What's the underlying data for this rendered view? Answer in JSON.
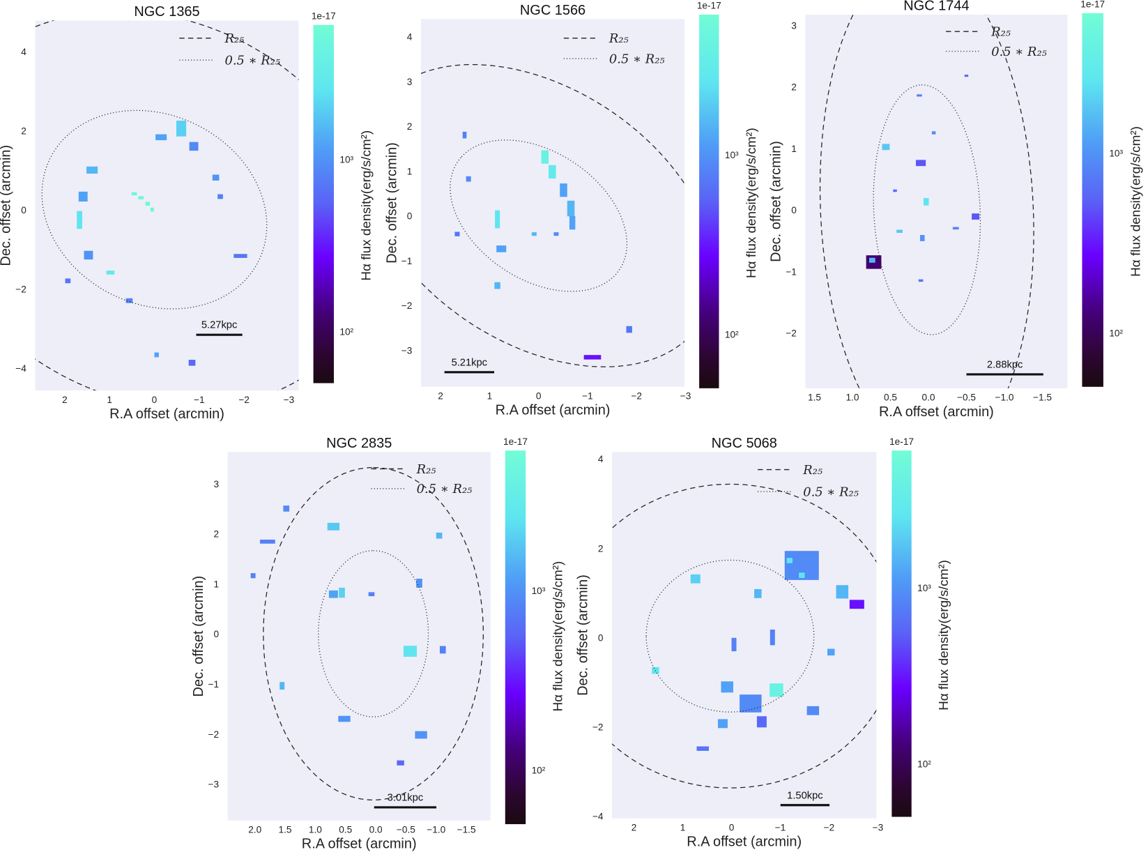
{
  "chart_data": [
    {
      "type": "heatmap",
      "title": "NGC 1365",
      "xlabel": "R.A offset (arcmin)",
      "ylabel": "Dec. offset (arcmin)",
      "xlim": [
        2.66,
        -3.22
      ],
      "ylim": [
        -4.57,
        4.78
      ],
      "xticks": [
        2,
        1,
        0,
        -1,
        -2,
        -3
      ],
      "xtick_labels": [
        "2",
        "1",
        "0",
        "−1",
        "−2",
        "−3"
      ],
      "yticks": [
        4,
        2,
        0,
        -2,
        -4
      ],
      "ytick_labels": [
        "4",
        "2",
        "0",
        "−2",
        "−4"
      ],
      "colorbar": {
        "label": "Hα flux density(erg/s/cm²)",
        "exponent": "1e-17",
        "scale": "log",
        "range": [
          50,
          6000
        ],
        "ticks": [
          1000,
          100
        ],
        "tick_labels": [
          "10³",
          "10²"
        ]
      },
      "legend": {
        "position": "top-right",
        "entries": [
          "R₂₅",
          "0.5 ∗ R₂₅"
        ]
      },
      "scale_bar": "5.27kpc",
      "r25_ellipse": {
        "center": [
          0,
          0
        ],
        "a": 5.4,
        "b": 4.6,
        "angle_deg": 45
      },
      "half_r25_ellipse": {
        "center": [
          0,
          0
        ],
        "a": 2.7,
        "b": 2.3,
        "angle_deg": 45
      },
      "regions": [
        [
          0.45,
          0.4,
          0.12,
          0.08,
          5000
        ],
        [
          0.3,
          0.3,
          0.12,
          0.08,
          5000
        ],
        [
          0.15,
          0.15,
          0.1,
          0.1,
          5000
        ],
        [
          0.05,
          0.0,
          0.08,
          0.1,
          5000
        ],
        [
          1.39,
          1.0,
          0.25,
          0.18,
          1500
        ],
        [
          1.59,
          0.33,
          0.2,
          0.25,
          1200
        ],
        [
          1.67,
          -0.26,
          0.12,
          0.45,
          2500
        ],
        [
          1.47,
          -1.15,
          0.2,
          0.22,
          1000
        ],
        [
          0.98,
          -1.59,
          0.18,
          0.1,
          3000
        ],
        [
          0.56,
          -2.3,
          0.15,
          0.12,
          800
        ],
        [
          1.93,
          -1.8,
          0.12,
          0.12,
          700
        ],
        [
          -0.15,
          1.83,
          0.25,
          0.15,
          1200
        ],
        [
          -0.6,
          2.05,
          0.22,
          0.4,
          2000
        ],
        [
          -0.88,
          1.6,
          0.2,
          0.22,
          900
        ],
        [
          -1.37,
          0.81,
          0.15,
          0.15,
          1000
        ],
        [
          -1.47,
          0.33,
          0.12,
          0.12,
          800
        ],
        [
          -1.92,
          -1.17,
          0.3,
          0.1,
          700
        ],
        [
          -0.84,
          -3.87,
          0.15,
          0.15,
          600
        ],
        [
          -0.05,
          -3.67,
          0.1,
          0.12,
          1200
        ]
      ]
    },
    {
      "type": "heatmap",
      "title": "NGC 1566",
      "xlabel": "R.A offset (arcmin)",
      "ylabel": "Dec. offset (arcmin)",
      "xlim": [
        2.4,
        -2.98
      ],
      "ylim": [
        -3.82,
        4.39
      ],
      "xticks": [
        2,
        1,
        0,
        -1,
        -2,
        -3
      ],
      "xtick_labels": [
        "2",
        "1",
        "0",
        "−1",
        "−2",
        "−3"
      ],
      "yticks": [
        4,
        3,
        2,
        1,
        0,
        -1,
        -2,
        -3
      ],
      "ytick_labels": [
        "4",
        "3",
        "2",
        "1",
        "0",
        "−1",
        "−2",
        "−3"
      ],
      "colorbar": {
        "label": "Hα flux density(erg/s/cm²)",
        "exponent": "1e-17",
        "scale": "log",
        "range": [
          50,
          6000
        ],
        "ticks": [
          1000,
          100
        ],
        "tick_labels": [
          "10³",
          "10²"
        ]
      },
      "legend": {
        "position": "top-right",
        "entries": [
          "R₂₅",
          "0.5 ∗ R₂₅"
        ]
      },
      "scale_bar": "5.21kpc",
      "r25_ellipse": {
        "center": [
          0,
          0
        ],
        "a": 4.1,
        "b": 2.75,
        "angle_deg": 40
      },
      "half_r25_ellipse": {
        "center": [
          0,
          0
        ],
        "a": 2.05,
        "b": 1.38,
        "angle_deg": 40
      },
      "regions": [
        [
          -0.13,
          1.31,
          0.15,
          0.3,
          4000
        ],
        [
          -0.28,
          0.98,
          0.15,
          0.3,
          3000
        ],
        [
          -0.51,
          0.57,
          0.15,
          0.3,
          1200
        ],
        [
          -0.66,
          0.16,
          0.15,
          0.35,
          1500
        ],
        [
          -0.69,
          -0.16,
          0.12,
          0.3,
          1200
        ],
        [
          0.84,
          -0.08,
          0.1,
          0.4,
          2500
        ],
        [
          0.76,
          -0.74,
          0.2,
          0.15,
          1200
        ],
        [
          1.43,
          0.82,
          0.1,
          0.12,
          900
        ],
        [
          1.51,
          1.8,
          0.08,
          0.15,
          800
        ],
        [
          0.09,
          -0.41,
          0.1,
          0.08,
          1500
        ],
        [
          -0.36,
          -0.41,
          0.1,
          0.08,
          900
        ],
        [
          -1.1,
          -3.16,
          0.35,
          0.1,
          300
        ],
        [
          0.84,
          -1.56,
          0.12,
          0.15,
          1500
        ],
        [
          -1.85,
          -2.54,
          0.12,
          0.15,
          700
        ],
        [
          1.66,
          -0.41,
          0.1,
          0.1,
          700
        ]
      ]
    },
    {
      "type": "heatmap",
      "title": "NGC 1744",
      "xlabel": "R.A offset (arcmin)",
      "ylabel": "Dec. offset (arcmin)",
      "xlim": [
        1.62,
        -1.83
      ],
      "ylim": [
        -2.9,
        3.17
      ],
      "xticks": [
        1.5,
        1.0,
        0.5,
        0.0,
        -0.5,
        -1.0,
        -1.5
      ],
      "xtick_labels": [
        "1.5",
        "1.0",
        "0.5",
        "0.0",
        "−0.5",
        "−1.0",
        "−1.5"
      ],
      "yticks": [
        3,
        2,
        1,
        0,
        -1,
        -2
      ],
      "ytick_labels": [
        "3",
        "2",
        "1",
        "0",
        "−1",
        "−2"
      ],
      "colorbar": {
        "label": "Hα flux density(erg/s/cm²)",
        "exponent": "1e-17",
        "scale": "log",
        "range": [
          50,
          6000
        ],
        "ticks": [
          1000,
          100
        ],
        "tick_labels": [
          "10³",
          "10²"
        ]
      },
      "legend": {
        "position": "top-right",
        "entries": [
          "R₂₅",
          "0.5 ∗ R₂₅"
        ]
      },
      "scale_bar": "2.88kpc",
      "r25_ellipse": {
        "center": [
          0.02,
          0
        ],
        "a": 4.06,
        "b": 1.4,
        "angle_deg": 88
      },
      "half_r25_ellipse": {
        "center": [
          0.02,
          0
        ],
        "a": 2.03,
        "b": 0.7,
        "angle_deg": 88
      },
      "regions": [
        [
          0.72,
          -0.85,
          0.2,
          0.22,
          120
        ],
        [
          0.74,
          -0.82,
          0.08,
          0.08,
          1500
        ],
        [
          0.1,
          0.76,
          0.13,
          0.1,
          500
        ],
        [
          0.56,
          1.02,
          0.1,
          0.1,
          1800
        ],
        [
          0.03,
          0.13,
          0.07,
          0.12,
          2500
        ],
        [
          -0.62,
          -0.11,
          0.1,
          0.1,
          500
        ],
        [
          0.08,
          -0.46,
          0.06,
          0.1,
          1000
        ],
        [
          0.38,
          -0.35,
          0.08,
          0.05,
          1800
        ],
        [
          0.1,
          -1.15,
          0.06,
          0.04,
          700
        ],
        [
          -0.36,
          -0.3,
          0.08,
          0.04,
          800
        ],
        [
          -0.07,
          1.25,
          0.05,
          0.05,
          900
        ],
        [
          0.44,
          0.31,
          0.05,
          0.04,
          600
        ],
        [
          0.12,
          1.86,
          0.07,
          0.03,
          800
        ],
        [
          -0.5,
          2.18,
          0.05,
          0.03,
          600
        ]
      ]
    },
    {
      "type": "heatmap",
      "title": "NGC 2835",
      "xlabel": "R.A offset (arcmin)",
      "ylabel": "Dec. offset (arcmin)",
      "xlim": [
        2.45,
        -1.9
      ],
      "ylim": [
        -3.73,
        3.63
      ],
      "xticks": [
        2.0,
        1.5,
        1.0,
        0.5,
        0.0,
        -0.5,
        -1.0,
        -1.5
      ],
      "xtick_labels": [
        "2.0",
        "1.5",
        "1.0",
        "0.5",
        "0.0",
        "−0.5",
        "−1.0",
        "−1.5"
      ],
      "yticks": [
        3,
        2,
        1,
        0,
        -1,
        -2,
        -3
      ],
      "ytick_labels": [
        "3",
        "2",
        "1",
        "0",
        "−1",
        "−2",
        "−3"
      ],
      "colorbar": {
        "label": "Hα flux density(erg/s/cm²)",
        "exponent": "1e-17",
        "scale": "log",
        "range": [
          50,
          6000
        ],
        "ticks": [
          1000,
          100
        ],
        "tick_labels": [
          "10³",
          "10²"
        ]
      },
      "legend": {
        "position": "top-right",
        "entries": [
          "R₂₅",
          "0.5 ∗ R₂₅"
        ]
      },
      "scale_bar": "3.01kpc",
      "r25_ellipse": {
        "center": [
          0.04,
          0
        ],
        "a": 3.32,
        "b": 1.82,
        "angle_deg": 90
      },
      "half_r25_ellipse": {
        "center": [
          0.04,
          0
        ],
        "a": 1.66,
        "b": 0.91,
        "angle_deg": 90
      },
      "regions": [
        [
          0.7,
          2.14,
          0.2,
          0.15,
          1800
        ],
        [
          0.56,
          0.82,
          0.1,
          0.2,
          2000
        ],
        [
          0.7,
          0.79,
          0.15,
          0.15,
          1200
        ],
        [
          -0.57,
          -0.35,
          0.22,
          0.22,
          2500
        ],
        [
          -0.72,
          1.01,
          0.1,
          0.18,
          1000
        ],
        [
          -1.11,
          -0.32,
          0.1,
          0.15,
          800
        ],
        [
          -0.75,
          -2.02,
          0.2,
          0.15,
          1000
        ],
        [
          0.52,
          -1.7,
          0.2,
          0.12,
          1000
        ],
        [
          1.79,
          1.84,
          0.25,
          0.08,
          800
        ],
        [
          1.48,
          2.5,
          0.1,
          0.12,
          900
        ],
        [
          -1.05,
          1.96,
          0.1,
          0.12,
          1500
        ],
        [
          1.55,
          -1.04,
          0.08,
          0.15,
          1500
        ],
        [
          -0.41,
          -2.58,
          0.12,
          0.1,
          600
        ],
        [
          0.07,
          0.79,
          0.1,
          0.08,
          800
        ],
        [
          2.03,
          1.16,
          0.08,
          0.1,
          800
        ]
      ]
    },
    {
      "type": "heatmap",
      "title": "NGC 5068",
      "xlabel": "R.A offset (arcmin)",
      "ylabel": "Dec. offset (arcmin)",
      "xlim": [
        2.45,
        -2.97
      ],
      "ylim": [
        -4.05,
        4.15
      ],
      "xticks": [
        2,
        1,
        0,
        -1,
        -2,
        -3
      ],
      "xtick_labels": [
        "2",
        "1",
        "0",
        "−1",
        "−2",
        "−3"
      ],
      "yticks": [
        4,
        2,
        0,
        -2,
        -4
      ],
      "ytick_labels": [
        "4",
        "2",
        "0",
        "−2",
        "−4"
      ],
      "colorbar": {
        "label": "Hα flux density(erg/s/cm²)",
        "exponent": "1e-17",
        "scale": "log",
        "range": [
          50,
          6000
        ],
        "ticks": [
          1000,
          100
        ],
        "tick_labels": [
          "10³",
          "10²"
        ]
      },
      "legend": {
        "position": "top-right",
        "entries": [
          "R₂₅",
          "0.5 ∗ R₂₅"
        ]
      },
      "scale_bar": "1.50kpc",
      "r25_ellipse": {
        "center": [
          0.03,
          0.03
        ],
        "a": 3.44,
        "b": 3.4,
        "angle_deg": 0
      },
      "half_r25_ellipse": {
        "center": [
          0.03,
          0.03
        ],
        "a": 1.72,
        "b": 1.7,
        "angle_deg": 0
      },
      "regions": [
        [
          -1.44,
          1.61,
          0.7,
          0.65,
          900
        ],
        [
          -1.19,
          1.72,
          0.12,
          0.12,
          2500
        ],
        [
          -1.44,
          1.39,
          0.12,
          0.12,
          2500
        ],
        [
          -0.92,
          -1.18,
          0.28,
          0.3,
          4000
        ],
        [
          -0.39,
          -1.48,
          0.45,
          0.4,
          900
        ],
        [
          0.09,
          -1.11,
          0.25,
          0.25,
          1200
        ],
        [
          -0.62,
          -1.89,
          0.2,
          0.25,
          600
        ],
        [
          0.18,
          -1.93,
          0.2,
          0.2,
          1200
        ],
        [
          0.74,
          1.31,
          0.2,
          0.2,
          2000
        ],
        [
          1.56,
          -0.74,
          0.15,
          0.15,
          2500
        ],
        [
          -0.54,
          0.98,
          0.15,
          0.2,
          1500
        ],
        [
          -2.57,
          0.74,
          0.3,
          0.2,
          300
        ],
        [
          -2.27,
          1.02,
          0.25,
          0.3,
          1500
        ],
        [
          -2.04,
          -0.33,
          0.15,
          0.15,
          1200
        ],
        [
          -0.84,
          0.0,
          0.1,
          0.35,
          800
        ],
        [
          -1.67,
          -1.64,
          0.25,
          0.2,
          900
        ],
        [
          0.59,
          -2.49,
          0.25,
          0.1,
          700
        ],
        [
          -0.05,
          -0.16,
          0.1,
          0.3,
          800
        ]
      ]
    }
  ],
  "colors": {
    "plot_background": "#eeeef8",
    "colormap_top": "#72fcd6",
    "colormap_mid": "#6a00ff",
    "colormap_bottom": "#1a0a10"
  }
}
